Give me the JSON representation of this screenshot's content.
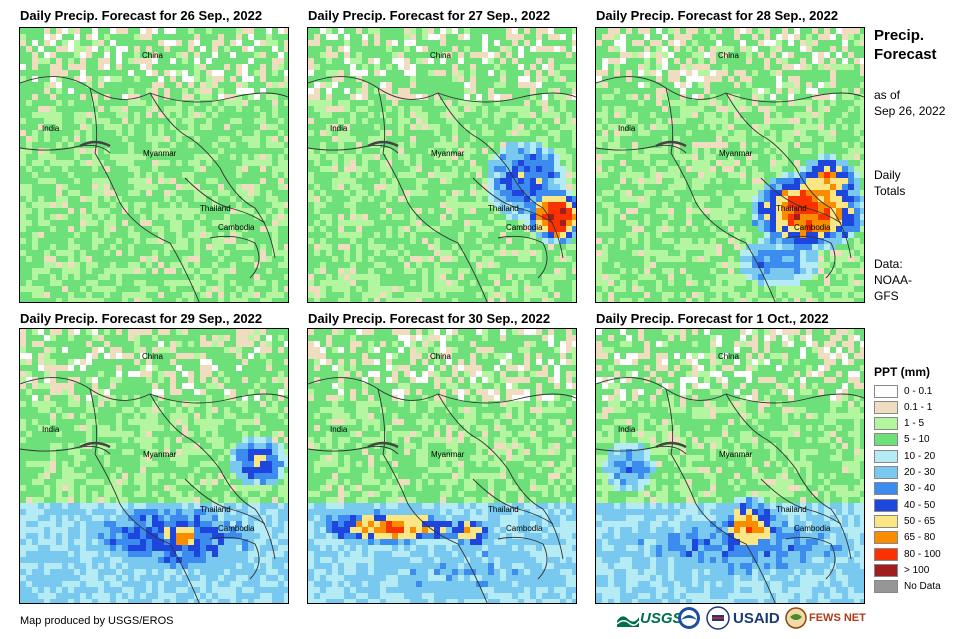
{
  "panels": [
    {
      "title": "Daily Precip. Forecast for 26 Sep., 2022"
    },
    {
      "title": "Daily Precip. Forecast for 27 Sep., 2022"
    },
    {
      "title": "Daily Precip. Forecast for 28 Sep., 2022"
    },
    {
      "title": "Daily Precip. Forecast for 29 Sep., 2022"
    },
    {
      "title": "Daily Precip. Forecast for 30 Sep., 2022"
    },
    {
      "title": "Daily Precip. Forecast for 1 Oct., 2022"
    }
  ],
  "map_labels": {
    "china": "China",
    "india": "India",
    "myanmar": "Myanmar",
    "thailand": "Thailand",
    "cambodia": "Cambodia"
  },
  "sidebar": {
    "title_line1": "Precip.",
    "title_line2": "Forecast",
    "asof_line1": "as of",
    "asof_line2": "Sep 26, 2022",
    "daily_line1": "Daily",
    "daily_line2": "Totals",
    "data_line1": "Data:",
    "data_line2": "NOAA-",
    "data_line3": "GFS"
  },
  "legend": {
    "title": "PPT (mm)",
    "items": [
      {
        "label": "0 - 0.1",
        "color": "#ffffff"
      },
      {
        "label": "0.1 - 1",
        "color": "#f0dcbe"
      },
      {
        "label": "1 - 5",
        "color": "#b4f5a0"
      },
      {
        "label": "5 - 10",
        "color": "#6ee07a"
      },
      {
        "label": "10 - 20",
        "color": "#b4ebf5"
      },
      {
        "label": "20 - 30",
        "color": "#78c8f0"
      },
      {
        "label": "30 - 40",
        "color": "#3c8cf0"
      },
      {
        "label": "40 - 50",
        "color": "#1e46dc"
      },
      {
        "label": "50 - 65",
        "color": "#fae682"
      },
      {
        "label": "65 - 80",
        "color": "#fa8c00"
      },
      {
        "label": "80 - 100",
        "color": "#fa3200"
      },
      {
        "label": "> 100",
        "color": "#a01e1e"
      },
      {
        "label": "No Data",
        "color": "#969696"
      }
    ]
  },
  "footer": {
    "credit": "Map produced by USGS/EROS",
    "logo_usgs": "USGS",
    "logo_usaid": "USAID",
    "logo_fews": "FEWS NET"
  }
}
